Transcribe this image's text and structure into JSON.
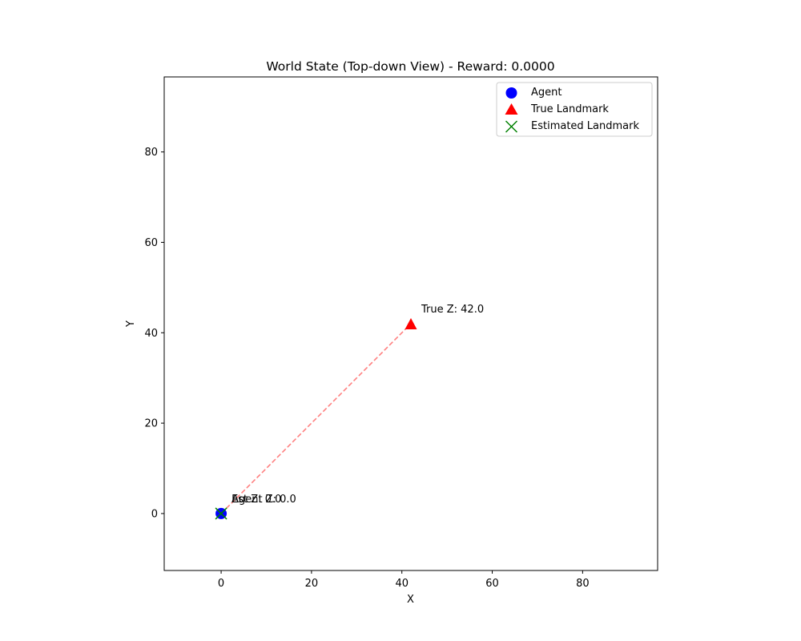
{
  "chart_data": {
    "type": "scatter",
    "title": "World State (Top-down View) - Reward: 0.0000",
    "xlabel": "X",
    "ylabel": "Y",
    "xlim": [
      -12.6,
      96.6
    ],
    "ylim": [
      -12.6,
      96.6
    ],
    "xticks": [
      0,
      20,
      40,
      60,
      80
    ],
    "yticks": [
      0,
      20,
      40,
      60,
      80
    ],
    "grid": false,
    "legend_position": "top-right",
    "series": [
      {
        "name": "Agent",
        "marker": "circle",
        "color": "#0000ff",
        "points": [
          {
            "x": 0,
            "y": 0
          }
        ]
      },
      {
        "name": "True Landmark",
        "marker": "triangle",
        "color": "#ff0000",
        "points": [
          {
            "x": 42,
            "y": 42
          }
        ]
      },
      {
        "name": "Estimated Landmark",
        "marker": "x",
        "color": "#008000",
        "points": [
          {
            "x": 0,
            "y": 0
          }
        ]
      }
    ],
    "connector": {
      "from": [
        0,
        0
      ],
      "to": [
        42,
        42
      ],
      "color": "#ff8080",
      "style": "dashed"
    },
    "annotations": [
      {
        "text": "Agent Z: 0.0",
        "x": 0,
        "y": 0
      },
      {
        "text": "Est Z: 0.0",
        "x": 0,
        "y": 0
      },
      {
        "text": "True Z: 42.0",
        "x": 42,
        "y": 42
      }
    ]
  }
}
